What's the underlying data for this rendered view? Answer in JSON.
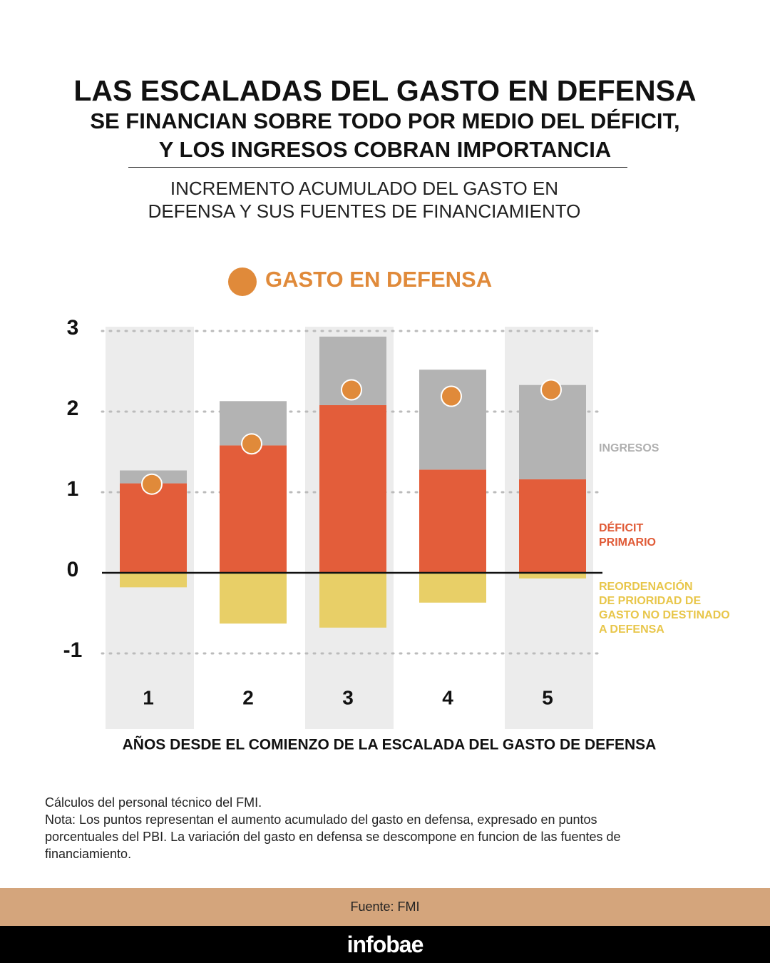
{
  "chart_data": {
    "type": "stacked-bar",
    "title": "LAS ESCALADAS DEL GASTO EN DEFENSA",
    "subtitle": "SE FINANCIAN SOBRE TODO POR MEDIO DEL DÉFICIT,\nY LOS INGRESOS COBRAN IMPORTANCIA",
    "description": "INCREMENTO ACUMULADO DEL GASTO EN\nDEFENSA Y SUS FUENTES DE FINANCIAMIENTO",
    "x_label": "AÑOS DESDE EL COMIENZO DE LA ESCALADA DEL GASTO DE DEFENSA",
    "categories": [
      "1",
      "2",
      "3",
      "4",
      "5"
    ],
    "series": [
      {
        "name": "DÉFICIT\nPRIMARIO",
        "color": "#e35d3a",
        "label_color": "#e05a36",
        "values": [
          1.11,
          1.58,
          2.08,
          1.28,
          1.16
        ]
      },
      {
        "name": "INGRESOS",
        "color": "#b3b3b3",
        "label_color": "#b0b0b0",
        "values": [
          0.16,
          0.55,
          0.85,
          1.24,
          1.17
        ]
      },
      {
        "name": "REORDENACIÓN\nDE PRIORIDAD DE\nGASTO NO DESTINADO\nA DEFENSA",
        "color": "#e8cf67",
        "label_color": "#e8c64a",
        "values": [
          -0.18,
          -0.63,
          -0.68,
          -0.37,
          -0.07
        ]
      }
    ],
    "dots": {
      "name": "GASTO EN DEFENSA",
      "color": "#e08a3a",
      "values": [
        1.1,
        1.6,
        2.27,
        2.19,
        2.27
      ]
    },
    "ylim": [
      -1,
      3
    ],
    "yticks": [
      -1,
      0,
      1,
      2,
      3
    ],
    "grid": true,
    "notes": [
      "Cálculos del personal técnico del FMI.",
      "Nota: Los puntos representan el aumento acumulado del gasto en defensa, expresado en puntos porcentuales del PBI. La variación del gasto en defensa se descompone en funcion de las fuentes de financiamiento."
    ],
    "source": "Fuente: FMI",
    "brand": "infobae"
  }
}
